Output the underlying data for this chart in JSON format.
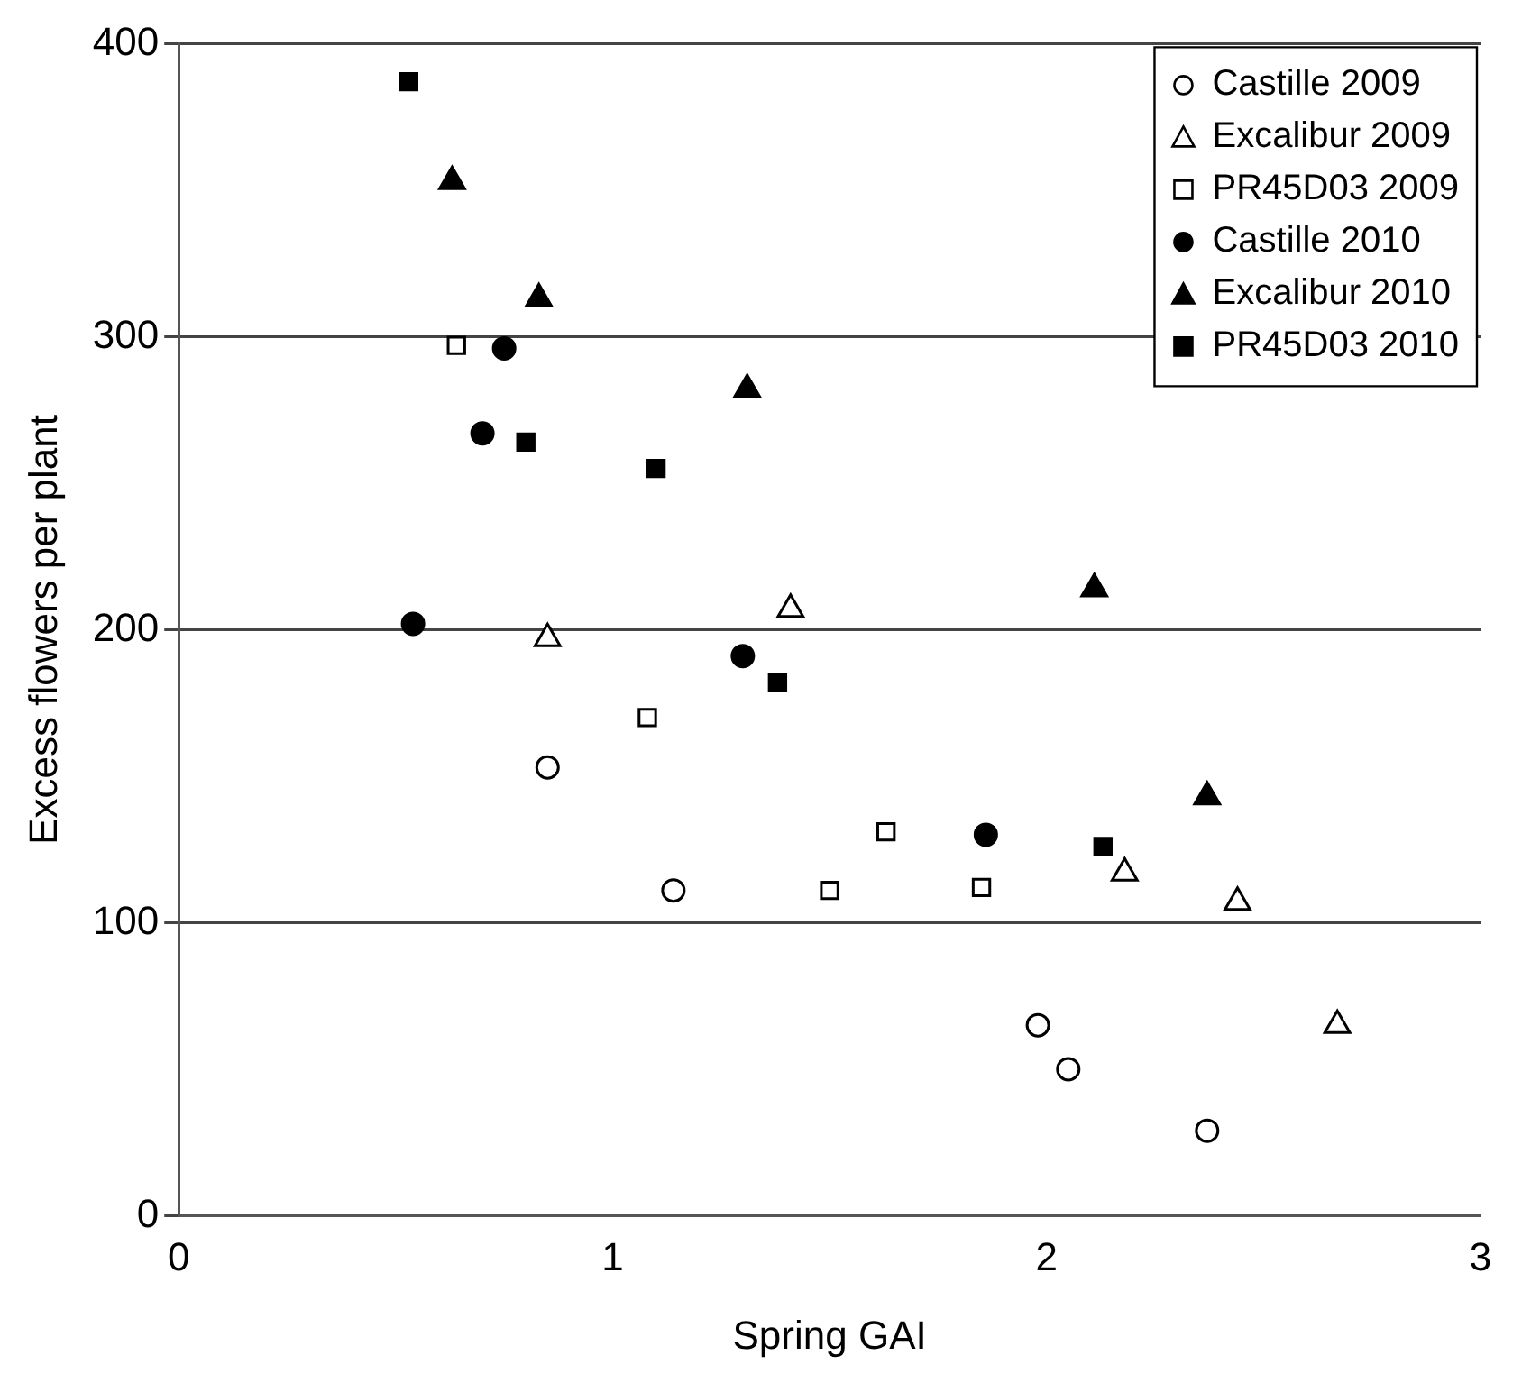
{
  "chart_data": {
    "type": "scatter",
    "xlabel": "Spring GAI",
    "ylabel": "Excess flowers per plant",
    "xlim": [
      0,
      3
    ],
    "xticks": [
      0,
      1,
      2,
      3
    ],
    "ylim": [
      0,
      400
    ],
    "yticks": [
      0,
      100,
      200,
      300,
      400
    ],
    "grid": "y",
    "legend": "top right",
    "series": [
      {
        "name": "Castille 2009",
        "marker": "circle",
        "color": "#ffffff",
        "x": [
          0.85,
          1.14,
          1.98,
          2.05,
          2.37
        ],
        "values": [
          153,
          111,
          65,
          50,
          29
        ]
      },
      {
        "name": "Excalibur 2009",
        "marker": "triangle",
        "color": "#ffffff",
        "x": [
          0.85,
          1.41,
          2.18,
          2.44,
          2.67
        ],
        "values": [
          197,
          207,
          117,
          107,
          65
        ]
      },
      {
        "name": "PR45D03 2009",
        "marker": "square",
        "color": "#ffffff",
        "x": [
          0.64,
          1.08,
          1.5,
          1.63,
          1.85
        ],
        "values": [
          297,
          170,
          111,
          131,
          112
        ]
      },
      {
        "name": "Castille 2010",
        "marker": "circle",
        "color": "#000000",
        "x": [
          0.54,
          0.7,
          0.75,
          1.3,
          1.86
        ],
        "values": [
          202,
          267,
          296,
          191,
          130
        ]
      },
      {
        "name": "Excalibur 2010",
        "marker": "triangle",
        "color": "#000000",
        "x": [
          0.63,
          0.83,
          1.31,
          2.11,
          2.37
        ],
        "values": [
          353,
          313,
          282,
          214,
          143
        ]
      },
      {
        "name": "PR45D03 2010",
        "marker": "square",
        "color": "#000000",
        "x": [
          0.53,
          0.8,
          1.1,
          1.38,
          2.13
        ],
        "values": [
          387,
          264,
          255,
          182,
          126
        ]
      }
    ]
  }
}
